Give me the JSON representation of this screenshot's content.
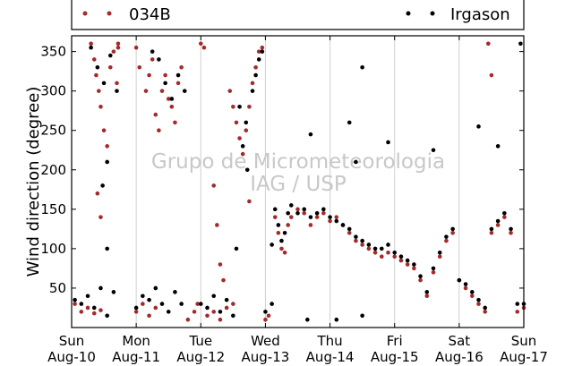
{
  "chart_data": {
    "type": "scatter",
    "title": "",
    "xlabel": "",
    "ylabel": "Wind direction (degree)",
    "ylim": [
      0,
      370
    ],
    "y_ticks": [
      50,
      100,
      150,
      200,
      250,
      300,
      350
    ],
    "x_domain_days": [
      0,
      7
    ],
    "x_ticks": [
      {
        "day": "Sun",
        "date": "Aug-10"
      },
      {
        "day": "Mon",
        "date": "Aug-11"
      },
      {
        "day": "Tue",
        "date": "Aug-12"
      },
      {
        "day": "Wed",
        "date": "Aug-13"
      },
      {
        "day": "Thu",
        "date": "Aug-14"
      },
      {
        "day": "Fri",
        "date": "Aug-15"
      },
      {
        "day": "Sat",
        "date": "Aug-16"
      },
      {
        "day": "Sun",
        "date": "Aug-17"
      }
    ],
    "grid": "vertical",
    "legend_position": "top",
    "watermark": [
      "Grupo de Micrometeorologia",
      "IAG / USP"
    ],
    "series": [
      {
        "name": "034B",
        "color": "#a52a2a",
        "points": [
          [
            0.05,
            30
          ],
          [
            0.15,
            20
          ],
          [
            0.25,
            25
          ],
          [
            0.35,
            18
          ],
          [
            0.45,
            22
          ],
          [
            0.3,
            360
          ],
          [
            0.35,
            340
          ],
          [
            0.38,
            320
          ],
          [
            0.42,
            300
          ],
          [
            0.45,
            280
          ],
          [
            0.5,
            250
          ],
          [
            0.55,
            230
          ],
          [
            0.4,
            170
          ],
          [
            0.45,
            140
          ],
          [
            0.6,
            330
          ],
          [
            0.65,
            350
          ],
          [
            0.7,
            310
          ],
          [
            0.72,
            355
          ],
          [
            0.72,
            360
          ],
          [
            1.0,
            20
          ],
          [
            1.1,
            30
          ],
          [
            1.2,
            15
          ],
          [
            1.3,
            25
          ],
          [
            1.0,
            355
          ],
          [
            1.05,
            330
          ],
          [
            1.15,
            300
          ],
          [
            1.2,
            320
          ],
          [
            1.25,
            340
          ],
          [
            1.3,
            270
          ],
          [
            1.35,
            250
          ],
          [
            1.4,
            300
          ],
          [
            1.45,
            320
          ],
          [
            1.5,
            290
          ],
          [
            1.55,
            280
          ],
          [
            1.6,
            260
          ],
          [
            1.65,
            310
          ],
          [
            1.7,
            330
          ],
          [
            1.8,
            10
          ],
          [
            1.9,
            20
          ],
          [
            1.95,
            30
          ],
          [
            2.0,
            360
          ],
          [
            2.05,
            355
          ],
          [
            2.1,
            15
          ],
          [
            2.2,
            20
          ],
          [
            2.3,
            10
          ],
          [
            2.4,
            25
          ],
          [
            2.5,
            30
          ],
          [
            2.2,
            180
          ],
          [
            2.25,
            130
          ],
          [
            2.35,
            60
          ],
          [
            2.3,
            80
          ],
          [
            2.45,
            300
          ],
          [
            2.5,
            280
          ],
          [
            2.55,
            260
          ],
          [
            2.6,
            240
          ],
          [
            2.65,
            220
          ],
          [
            2.7,
            250
          ],
          [
            2.75,
            280
          ],
          [
            2.8,
            310
          ],
          [
            2.85,
            330
          ],
          [
            2.9,
            350
          ],
          [
            2.95,
            355
          ],
          [
            2.75,
            160
          ],
          [
            3.0,
            10
          ],
          [
            3.05,
            15
          ],
          [
            3.15,
            140
          ],
          [
            3.2,
            120
          ],
          [
            3.25,
            100
          ],
          [
            3.3,
            95
          ],
          [
            3.35,
            130
          ],
          [
            3.4,
            140
          ],
          [
            3.5,
            150
          ],
          [
            3.6,
            145
          ],
          [
            3.7,
            130
          ],
          [
            3.8,
            140
          ],
          [
            3.9,
            145
          ],
          [
            4.0,
            135
          ],
          [
            4.1,
            140
          ],
          [
            4.2,
            130
          ],
          [
            4.3,
            120
          ],
          [
            4.4,
            110
          ],
          [
            4.5,
            105
          ],
          [
            4.6,
            100
          ],
          [
            4.7,
            95
          ],
          [
            4.8,
            90
          ],
          [
            4.9,
            95
          ],
          [
            5.0,
            90
          ],
          [
            5.1,
            85
          ],
          [
            5.2,
            80
          ],
          [
            5.3,
            75
          ],
          [
            5.4,
            60
          ],
          [
            5.5,
            40
          ],
          [
            5.6,
            70
          ],
          [
            5.7,
            90
          ],
          [
            5.8,
            110
          ],
          [
            5.9,
            120
          ],
          [
            6.0,
            60
          ],
          [
            6.1,
            50
          ],
          [
            6.2,
            40
          ],
          [
            6.3,
            30
          ],
          [
            6.4,
            20
          ],
          [
            6.5,
            120
          ],
          [
            6.6,
            130
          ],
          [
            6.7,
            140
          ],
          [
            6.8,
            120
          ],
          [
            6.9,
            20
          ],
          [
            7.0,
            25
          ],
          [
            6.45,
            360
          ],
          [
            6.5,
            320
          ]
        ]
      },
      {
        "name": "Irgason",
        "color": "#000000",
        "points": [
          [
            0.05,
            35
          ],
          [
            0.15,
            30
          ],
          [
            0.25,
            40
          ],
          [
            0.35,
            25
          ],
          [
            0.45,
            50
          ],
          [
            0.55,
            15
          ],
          [
            0.65,
            45
          ],
          [
            0.3,
            355
          ],
          [
            0.4,
            330
          ],
          [
            0.5,
            310
          ],
          [
            0.6,
            345
          ],
          [
            0.7,
            300
          ],
          [
            0.48,
            180
          ],
          [
            0.55,
            210
          ],
          [
            1.0,
            25
          ],
          [
            1.1,
            40
          ],
          [
            1.2,
            35
          ],
          [
            1.3,
            50
          ],
          [
            1.4,
            30
          ],
          [
            1.5,
            20
          ],
          [
            1.6,
            45
          ],
          [
            1.7,
            30
          ],
          [
            1.35,
            340
          ],
          [
            1.45,
            310
          ],
          [
            1.55,
            290
          ],
          [
            1.65,
            320
          ],
          [
            1.75,
            300
          ],
          [
            1.25,
            350
          ],
          [
            2.0,
            30
          ],
          [
            2.1,
            25
          ],
          [
            2.2,
            40
          ],
          [
            2.3,
            20
          ],
          [
            2.4,
            35
          ],
          [
            2.5,
            15
          ],
          [
            2.6,
            280
          ],
          [
            2.7,
            260
          ],
          [
            2.8,
            300
          ],
          [
            2.85,
            320
          ],
          [
            2.9,
            340
          ],
          [
            2.95,
            350
          ],
          [
            2.65,
            230
          ],
          [
            2.72,
            200
          ],
          [
            3.0,
            20
          ],
          [
            3.1,
            30
          ],
          [
            3.15,
            150
          ],
          [
            3.2,
            130
          ],
          [
            3.25,
            110
          ],
          [
            3.3,
            120
          ],
          [
            3.35,
            145
          ],
          [
            3.4,
            155
          ],
          [
            3.5,
            145
          ],
          [
            3.6,
            150
          ],
          [
            3.7,
            140
          ],
          [
            3.8,
            145
          ],
          [
            3.9,
            150
          ],
          [
            4.0,
            140
          ],
          [
            4.1,
            135
          ],
          [
            4.2,
            130
          ],
          [
            4.3,
            125
          ],
          [
            4.4,
            115
          ],
          [
            4.5,
            110
          ],
          [
            4.6,
            105
          ],
          [
            4.7,
            100
          ],
          [
            4.8,
            100
          ],
          [
            4.9,
            105
          ],
          [
            5.0,
            95
          ],
          [
            5.1,
            90
          ],
          [
            5.2,
            85
          ],
          [
            5.3,
            80
          ],
          [
            5.4,
            65
          ],
          [
            5.5,
            45
          ],
          [
            5.6,
            75
          ],
          [
            5.7,
            95
          ],
          [
            5.8,
            115
          ],
          [
            5.9,
            125
          ],
          [
            6.0,
            60
          ],
          [
            6.1,
            55
          ],
          [
            6.2,
            45
          ],
          [
            6.3,
            35
          ],
          [
            6.4,
            25
          ],
          [
            6.5,
            125
          ],
          [
            6.6,
            135
          ],
          [
            6.7,
            145
          ],
          [
            6.8,
            125
          ],
          [
            6.9,
            30
          ],
          [
            7.0,
            30
          ],
          [
            4.5,
            330
          ],
          [
            4.3,
            260
          ],
          [
            3.7,
            245
          ],
          [
            4.9,
            235
          ],
          [
            5.6,
            225
          ],
          [
            6.6,
            230
          ],
          [
            6.3,
            255
          ],
          [
            4.4,
            210
          ],
          [
            3.65,
            10
          ],
          [
            4.1,
            10
          ],
          [
            4.5,
            15
          ],
          [
            2.55,
            100
          ],
          [
            0.55,
            100
          ],
          [
            6.95,
            360
          ],
          [
            3.1,
            105
          ]
        ]
      }
    ]
  }
}
